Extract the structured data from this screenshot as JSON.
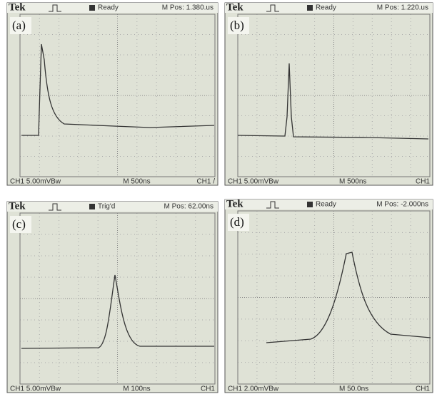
{
  "panels": [
    {
      "label": "(a)",
      "brand": "Tek",
      "status": "Ready",
      "position": "M Pos: 1.380.us",
      "channel": "CH1  5.00mVBw",
      "timebase": "M 500ns",
      "trigger": "CH1 /"
    },
    {
      "label": "(b)",
      "brand": "Tek",
      "status": "Ready",
      "position": "M Pos: 1.220.us",
      "channel": "CH1  5.00mVBw",
      "timebase": "M 500ns",
      "trigger": "CH1"
    },
    {
      "label": "(c)",
      "brand": "Tek",
      "status": "Trig'd",
      "position": "M Pos: 62.00ns",
      "channel": "CH1  5.00mVBw",
      "timebase": "M 100ns",
      "trigger": "CH1"
    },
    {
      "label": "(d)",
      "brand": "Tek",
      "status": "Ready",
      "position": "M Pos: -2.000ns",
      "channel": "CH1  2.00mVBw",
      "timebase": "M 50.0ns",
      "trigger": "CH1"
    }
  ]
}
